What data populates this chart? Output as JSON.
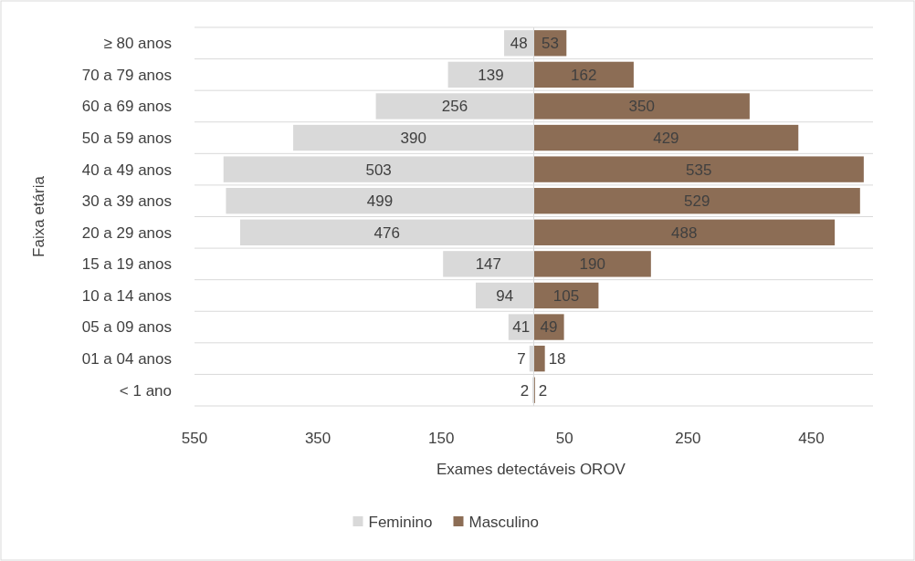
{
  "chart_data": {
    "type": "bar",
    "orientation": "horizontal",
    "xlabel": "Exames detectáveis OROV",
    "ylabel": "Faixa etária",
    "categories": [
      "≥ 80 anos",
      "70 a 79 anos",
      "60 a 69 anos",
      "50 a 59 anos",
      "40 a 49 anos",
      "30 a 39 anos",
      "20 a 29 anos",
      "15 a 19 anos",
      "10 a 14 anos",
      "05 a 09 anos",
      "01 a 04 anos",
      "< 1 ano"
    ],
    "series": [
      {
        "name": "Feminino",
        "color": "#d9d9d9",
        "values": [
          48,
          139,
          256,
          390,
          503,
          499,
          476,
          147,
          94,
          41,
          7,
          2
        ],
        "base": [
          -48,
          -139,
          -256,
          -390,
          -503,
          -499,
          -476,
          -147,
          -94,
          -41,
          -7,
          -2
        ],
        "value_labels": [
          "48",
          "139",
          "256",
          "390",
          "503",
          "499",
          "476",
          "147",
          "94",
          "41",
          "7",
          "2"
        ]
      },
      {
        "name": "Masculino",
        "color": "#8c6d55",
        "values": [
          53,
          162,
          350,
          429,
          535,
          529,
          488,
          190,
          105,
          49,
          18,
          2
        ],
        "value_labels": [
          "53",
          "162",
          "350",
          "429",
          "535",
          "529",
          "488",
          "190",
          "105",
          "49",
          "18",
          "2"
        ]
      }
    ],
    "xlim": [
      -550,
      550
    ],
    "xticks": [
      {
        "value": -550,
        "label": "550"
      },
      {
        "value": -350,
        "label": "350"
      },
      {
        "value": -150,
        "label": "150"
      },
      50,
      250,
      450
    ],
    "grid": "y",
    "legend": "bottom"
  }
}
